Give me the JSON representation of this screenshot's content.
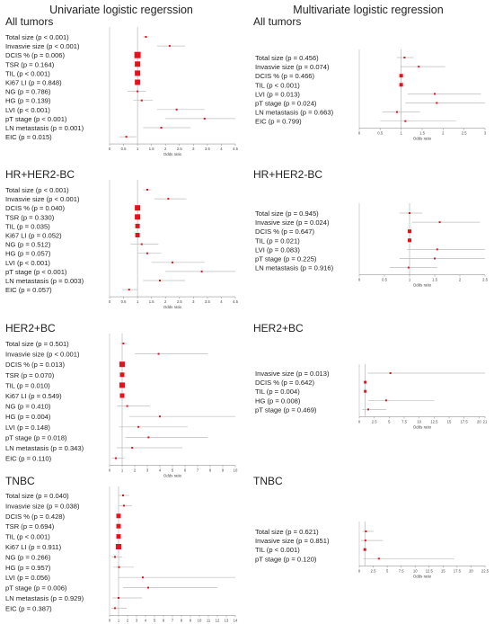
{
  "headings": {
    "left": "Univariate logistic regerssion",
    "right": "Multivariate logistic regression"
  },
  "axis_label": "Odds ratio",
  "marker_color": "#e8111b",
  "chart_data": [
    {
      "type": "forest",
      "title": "All tumors",
      "group": "univariate",
      "xlim": [
        0,
        4.5
      ],
      "xticks": [
        0,
        0.5,
        1,
        1.5,
        2,
        2.5,
        3,
        3.5,
        4,
        4.5
      ],
      "xlabel": "Odds ratio",
      "reference_line": 1,
      "rows": [
        {
          "label": "Total size (p < 0.001)",
          "or": 1.3,
          "lo": 1.2,
          "hi": 1.42,
          "size": 2
        },
        {
          "label": "Invasvie size (p < 0.001)",
          "or": 2.15,
          "lo": 1.7,
          "hi": 2.7,
          "size": 2
        },
        {
          "label": "DCIS % (p = 0.006)",
          "or": 1.0,
          "lo": 1.0,
          "hi": 1.01,
          "size": 7
        },
        {
          "label": "TSR (p = 0.164)",
          "or": 1.0,
          "lo": 0.99,
          "hi": 1.01,
          "size": 6
        },
        {
          "label": "TIL (p < 0.001)",
          "or": 1.0,
          "lo": 0.99,
          "hi": 1.01,
          "size": 6
        },
        {
          "label": "Ki67 LI (p = 0.848)",
          "or": 1.0,
          "lo": 0.99,
          "hi": 1.01,
          "size": 6
        },
        {
          "label": "NG (p = 0.786)",
          "or": 1.0,
          "lo": 0.65,
          "hi": 1.3,
          "size": 2
        },
        {
          "label": "HG (p = 0.139)",
          "or": 1.15,
          "lo": 0.85,
          "hi": 1.55,
          "size": 2
        },
        {
          "label": "LVI (p < 0.001)",
          "or": 2.4,
          "lo": 1.7,
          "hi": 3.4,
          "size": 2
        },
        {
          "label": "pT stage (p < 0.001)",
          "or": 3.4,
          "lo": 2.0,
          "hi": 4.5,
          "size": 2
        },
        {
          "label": "LN metastasis (p = 0.001)",
          "or": 1.85,
          "lo": 1.2,
          "hi": 2.9,
          "size": 2
        },
        {
          "label": "EIC (p = 0.015)",
          "or": 0.6,
          "lo": 0.35,
          "hi": 0.95,
          "size": 2
        }
      ]
    },
    {
      "type": "forest",
      "title": "All tumors",
      "group": "multivariate",
      "xlim": [
        0,
        3
      ],
      "xticks": [
        0,
        0.5,
        1,
        1.5,
        2,
        2.5,
        3
      ],
      "xlabel": "Odds ratio",
      "reference_line": 1,
      "rows": [
        {
          "label": "Total size (p = 0.456)",
          "or": 1.08,
          "lo": 0.9,
          "hi": 1.3,
          "size": 2
        },
        {
          "label": "Invasvie size (p = 0.074)",
          "or": 1.42,
          "lo": 0.98,
          "hi": 2.05,
          "size": 2
        },
        {
          "label": "DCIS % (p = 0.466)",
          "or": 1.0,
          "lo": 0.99,
          "hi": 1.01,
          "size": 4
        },
        {
          "label": "TIL (p < 0.001)",
          "or": 1.0,
          "lo": 0.99,
          "hi": 1.01,
          "size": 4
        },
        {
          "label": "LVI (p = 0.013)",
          "or": 1.8,
          "lo": 1.15,
          "hi": 2.9,
          "size": 2
        },
        {
          "label": "pT stage (p = 0.024)",
          "or": 1.85,
          "lo": 1.1,
          "hi": 3.0,
          "size": 2
        },
        {
          "label": "LN metastasis (p = 0.663)",
          "or": 0.9,
          "lo": 0.55,
          "hi": 1.45,
          "size": 2
        },
        {
          "label": "EIC (p = 0.799)",
          "or": 1.1,
          "lo": 0.5,
          "hi": 2.3,
          "size": 2
        }
      ]
    },
    {
      "type": "forest",
      "title": "HR+HER2-BC",
      "group": "univariate",
      "xlim": [
        0,
        4.5
      ],
      "xticks": [
        0,
        0.5,
        1,
        1.5,
        2,
        2.5,
        3,
        3.5,
        4,
        4.5
      ],
      "xlabel": "Odds ratio",
      "reference_line": 1,
      "rows": [
        {
          "label": "Total size (p < 0.001)",
          "or": 1.35,
          "lo": 1.2,
          "hi": 1.5,
          "size": 2
        },
        {
          "label": "Invasvie size (p < 0.001)",
          "or": 2.1,
          "lo": 1.6,
          "hi": 2.75,
          "size": 2
        },
        {
          "label": "DCIS % (p = 0.040)",
          "or": 1.0,
          "lo": 1.0,
          "hi": 1.01,
          "size": 6
        },
        {
          "label": "TSR (p = 0.330)",
          "or": 1.0,
          "lo": 0.99,
          "hi": 1.01,
          "size": 6
        },
        {
          "label": "TIL (p = 0.035)",
          "or": 1.0,
          "lo": 0.99,
          "hi": 1.01,
          "size": 5
        },
        {
          "label": "Ki67 LI (p = 0.052)",
          "or": 1.0,
          "lo": 0.99,
          "hi": 1.01,
          "size": 5
        },
        {
          "label": "NG (p = 0.512)",
          "or": 1.15,
          "lo": 0.75,
          "hi": 1.75,
          "size": 2
        },
        {
          "label": "HG (p = 0.057)",
          "or": 1.35,
          "lo": 0.99,
          "hi": 1.85,
          "size": 2
        },
        {
          "label": "LVI (p < 0.001)",
          "or": 2.25,
          "lo": 1.5,
          "hi": 3.4,
          "size": 2
        },
        {
          "label": "pT stage (p < 0.001)",
          "or": 3.3,
          "lo": 2.0,
          "hi": 4.5,
          "size": 2
        },
        {
          "label": "LN metastasis (p = 0.003)",
          "or": 1.8,
          "lo": 1.2,
          "hi": 2.7,
          "size": 2
        },
        {
          "label": "EIC (p = 0.057)",
          "or": 0.7,
          "lo": 0.45,
          "hi": 1.01,
          "size": 2
        }
      ]
    },
    {
      "type": "forest",
      "title": "HR+HER2-BC",
      "group": "multivariate",
      "xlim": [
        0,
        2.5
      ],
      "xticks": [
        0,
        0.5,
        1,
        1.5,
        2,
        2.5
      ],
      "xlabel": "Odds ratio",
      "reference_line": 1,
      "rows": [
        {
          "label": "Total size (p = 0.945)",
          "or": 1.0,
          "lo": 0.8,
          "hi": 1.25,
          "size": 2
        },
        {
          "label": "Invasive size (p = 0.024)",
          "or": 1.6,
          "lo": 1.05,
          "hi": 2.4,
          "size": 2
        },
        {
          "label": "DCIS % (p = 0.647)",
          "or": 1.0,
          "lo": 0.99,
          "hi": 1.01,
          "size": 4
        },
        {
          "label": "TIL (p = 0.021)",
          "or": 1.0,
          "lo": 0.99,
          "hi": 1.01,
          "size": 4
        },
        {
          "label": "LVI (p = 0.083)",
          "or": 1.55,
          "lo": 0.95,
          "hi": 2.5,
          "size": 2
        },
        {
          "label": "pT stage (p = 0.225)",
          "or": 1.5,
          "lo": 0.8,
          "hi": 2.5,
          "size": 2
        },
        {
          "label": "LN metastasis (p = 0.916)",
          "or": 0.98,
          "lo": 0.6,
          "hi": 1.55,
          "size": 2
        }
      ]
    },
    {
      "type": "forest",
      "title": "HER2+BC",
      "group": "univariate",
      "xlim": [
        0,
        10
      ],
      "xticks": [
        0,
        1,
        2,
        3,
        4,
        5,
        6,
        7,
        8,
        9,
        10
      ],
      "xlabel": "Odds ratio",
      "reference_line": 1,
      "rows": [
        {
          "label": "Total size (p = 0.501)",
          "or": 1.1,
          "lo": 0.85,
          "hi": 1.4,
          "size": 2
        },
        {
          "label": "Invasvie size (p < 0.001)",
          "or": 3.9,
          "lo": 2.0,
          "hi": 7.8,
          "size": 2
        },
        {
          "label": "DCIS % (p = 0.013)",
          "or": 1.0,
          "lo": 1.0,
          "hi": 1.02,
          "size": 6
        },
        {
          "label": "TSR (p = 0.070)",
          "or": 1.0,
          "lo": 0.99,
          "hi": 1.01,
          "size": 5
        },
        {
          "label": "TIL (p = 0.010)",
          "or": 1.0,
          "lo": 0.99,
          "hi": 1.01,
          "size": 6
        },
        {
          "label": "Ki67 LI (p = 0.549)",
          "or": 1.0,
          "lo": 0.99,
          "hi": 1.01,
          "size": 5
        },
        {
          "label": "NG (p = 0.410)",
          "or": 1.4,
          "lo": 0.6,
          "hi": 3.2,
          "size": 2
        },
        {
          "label": "HG (p = 0.004)",
          "or": 4.0,
          "lo": 1.55,
          "hi": 10.0,
          "size": 2
        },
        {
          "label": "LVI (p = 0.148)",
          "or": 2.3,
          "lo": 0.75,
          "hi": 6.2,
          "size": 2
        },
        {
          "label": "pT stage (p = 0.018)",
          "or": 3.1,
          "lo": 1.25,
          "hi": 7.8,
          "size": 2
        },
        {
          "label": "LN metastasis (p = 0.343)",
          "or": 1.8,
          "lo": 0.55,
          "hi": 5.8,
          "size": 2
        },
        {
          "label": "EIC (p = 0.110)",
          "or": 0.5,
          "lo": 0.2,
          "hi": 1.15,
          "size": 2
        }
      ]
    },
    {
      "type": "forest",
      "title": "HER2+BC",
      "group": "multivariate",
      "xlim": [
        0,
        21
      ],
      "xticks": [
        0,
        2.5,
        5,
        7.5,
        10,
        12.5,
        15,
        17.5,
        20,
        21
      ],
      "xlabel": "Odds ratio",
      "reference_line": 1,
      "rows": [
        {
          "label": "Invasive size (p = 0.013)",
          "or": 5.2,
          "lo": 1.4,
          "hi": 21.0,
          "size": 2
        },
        {
          "label": "DCIS % (p = 0.642)",
          "or": 1.0,
          "lo": 0.98,
          "hi": 1.03,
          "size": 3
        },
        {
          "label": "TIL (p = 0.004)",
          "or": 1.0,
          "lo": 0.98,
          "hi": 1.02,
          "size": 3
        },
        {
          "label": "HG (p = 0.008)",
          "or": 4.5,
          "lo": 1.5,
          "hi": 12.5,
          "size": 2
        },
        {
          "label": "pT stage (p = 0.469)",
          "or": 1.5,
          "lo": 0.5,
          "hi": 4.5,
          "size": 2
        }
      ]
    },
    {
      "type": "forest",
      "title": "TNBC",
      "group": "univariate",
      "xlim": [
        0,
        14
      ],
      "xticks": [
        0,
        1,
        2,
        3,
        4,
        5,
        6,
        7,
        8,
        9,
        10,
        11,
        12,
        13,
        14
      ],
      "xlabel": "Odds ratio",
      "reference_line": 1,
      "rows": [
        {
          "label": "Total size (p = 0.040)",
          "or": 1.5,
          "lo": 1.02,
          "hi": 2.2,
          "size": 2
        },
        {
          "label": "Invasvie size (p = 0.038)",
          "or": 1.6,
          "lo": 1.05,
          "hi": 2.5,
          "size": 2
        },
        {
          "label": "DCIS % (p = 0.428)",
          "or": 1.0,
          "lo": 0.99,
          "hi": 1.01,
          "size": 5
        },
        {
          "label": "TSR (p = 0.694)",
          "or": 1.0,
          "lo": 0.99,
          "hi": 1.01,
          "size": 5
        },
        {
          "label": "TIL (p < 0.001)",
          "or": 1.0,
          "lo": 0.99,
          "hi": 1.01,
          "size": 5
        },
        {
          "label": "Ki67 LI (p = 0.911)",
          "or": 1.0,
          "lo": 0.99,
          "hi": 1.01,
          "size": 6
        },
        {
          "label": "NG (p = 0.266)",
          "or": 0.6,
          "lo": 0.25,
          "hi": 1.45,
          "size": 2
        },
        {
          "label": "HG (p = 0.957)",
          "or": 1.05,
          "lo": 0.4,
          "hi": 2.7,
          "size": 2
        },
        {
          "label": "LVI (p = 0.056)",
          "or": 3.7,
          "lo": 0.95,
          "hi": 14.0,
          "size": 2
        },
        {
          "label": "pT stage (p = 0.006)",
          "or": 4.3,
          "lo": 1.5,
          "hi": 12.0,
          "size": 2
        },
        {
          "label": "LN metastasis (p = 0.929)",
          "or": 1.0,
          "lo": 0.3,
          "hi": 3.6,
          "size": 2
        },
        {
          "label": "EIC (p = 0.387)",
          "or": 0.6,
          "lo": 0.2,
          "hi": 1.9,
          "size": 2
        }
      ]
    },
    {
      "type": "forest",
      "title": "TNBC",
      "group": "multivariate",
      "xlim": [
        0,
        22.5
      ],
      "xticks": [
        0,
        2.5,
        5,
        7.5,
        10,
        12.5,
        15,
        17.5,
        20,
        22.5
      ],
      "xlabel": "Odds ratio",
      "reference_line": 1,
      "rows": [
        {
          "label": "Total size (p = 0.621)",
          "or": 1.2,
          "lo": 0.55,
          "hi": 2.6,
          "size": 2
        },
        {
          "label": "Invasive size (p = 0.851)",
          "or": 1.1,
          "lo": 0.3,
          "hi": 4.2,
          "size": 2
        },
        {
          "label": "TIL (p < 0.001)",
          "or": 1.0,
          "lo": 0.99,
          "hi": 1.01,
          "size": 3
        },
        {
          "label": "pT stage (p = 0.120)",
          "or": 3.5,
          "lo": 0.7,
          "hi": 17.0,
          "size": 2
        }
      ]
    }
  ]
}
